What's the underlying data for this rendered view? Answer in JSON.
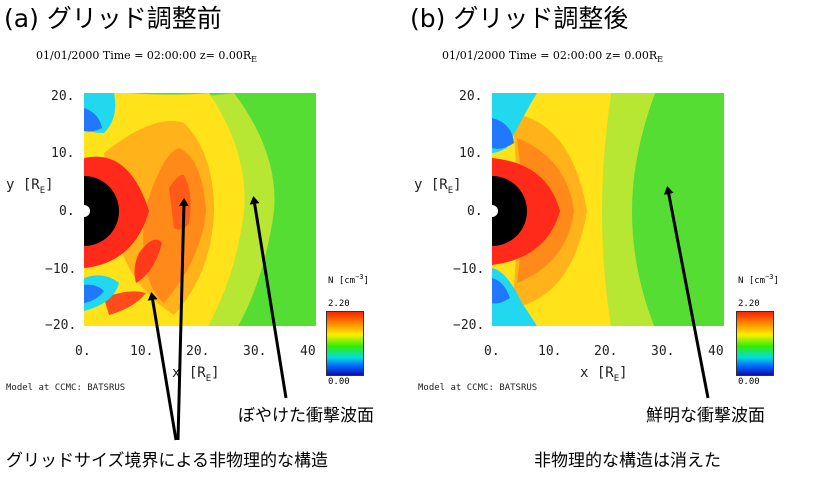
{
  "left_panel": {
    "title": "(a) グリッド調整前",
    "subtitle_main": "01/01/2000 Time = 02:00:00",
    "subtitle_z": "z= 0.00R",
    "subtitle_sub": "E",
    "y_ticks": [
      "20.",
      "10.",
      "0.",
      "−10.",
      "−20."
    ],
    "x_ticks": [
      "0.",
      "10.",
      "20.",
      "30.",
      "40"
    ],
    "ylabel": "y [R",
    "xlabel": "x [R",
    "label_sub": "E",
    "label_close": "]",
    "credit": "Model at CCMC: BATSRUS",
    "colorbar_unit": "N [cm",
    "colorbar_exp": "−3",
    "colorbar_close": "]",
    "colorbar_max": "2.20",
    "colorbar_min": "0.00",
    "annotation_bowshock": "ぼやけた衝撃波面"
  },
  "right_panel": {
    "title": "(b) グリッド調整後",
    "subtitle_main": "01/01/2000 Time = 02:00:00",
    "subtitle_z": "z= 0.00R",
    "subtitle_sub": "E",
    "y_ticks": [
      "20.",
      "10.",
      "0.",
      "−10.",
      "−20."
    ],
    "x_ticks": [
      "0.",
      "10.",
      "20.",
      "30.",
      "40"
    ],
    "ylabel": "y [R",
    "xlabel": "x [R",
    "label_sub": "E",
    "label_close": "]",
    "credit": "Model at CCMC: BATSRUS",
    "colorbar_unit": "N [cm",
    "colorbar_exp": "−3",
    "colorbar_close": "]",
    "colorbar_max": "2.20",
    "colorbar_min": "0.00",
    "annotation_bowshock": "鮮明な衝撃波面"
  },
  "bottom_annotations": {
    "left": "グリッドサイズ境界による非物理的な構造",
    "right": "非物理的な構造は消えた"
  },
  "colors": {
    "solar_wind": "#55dd33",
    "sheath_high": "#ff2a1a",
    "sheath_orange": "#ff9a1a",
    "sheath_yellow": "#ffe21a",
    "lowdensity_cyan": "#22d8ee",
    "lowdensity_blue": "#2277ff",
    "earth": "#000000"
  }
}
